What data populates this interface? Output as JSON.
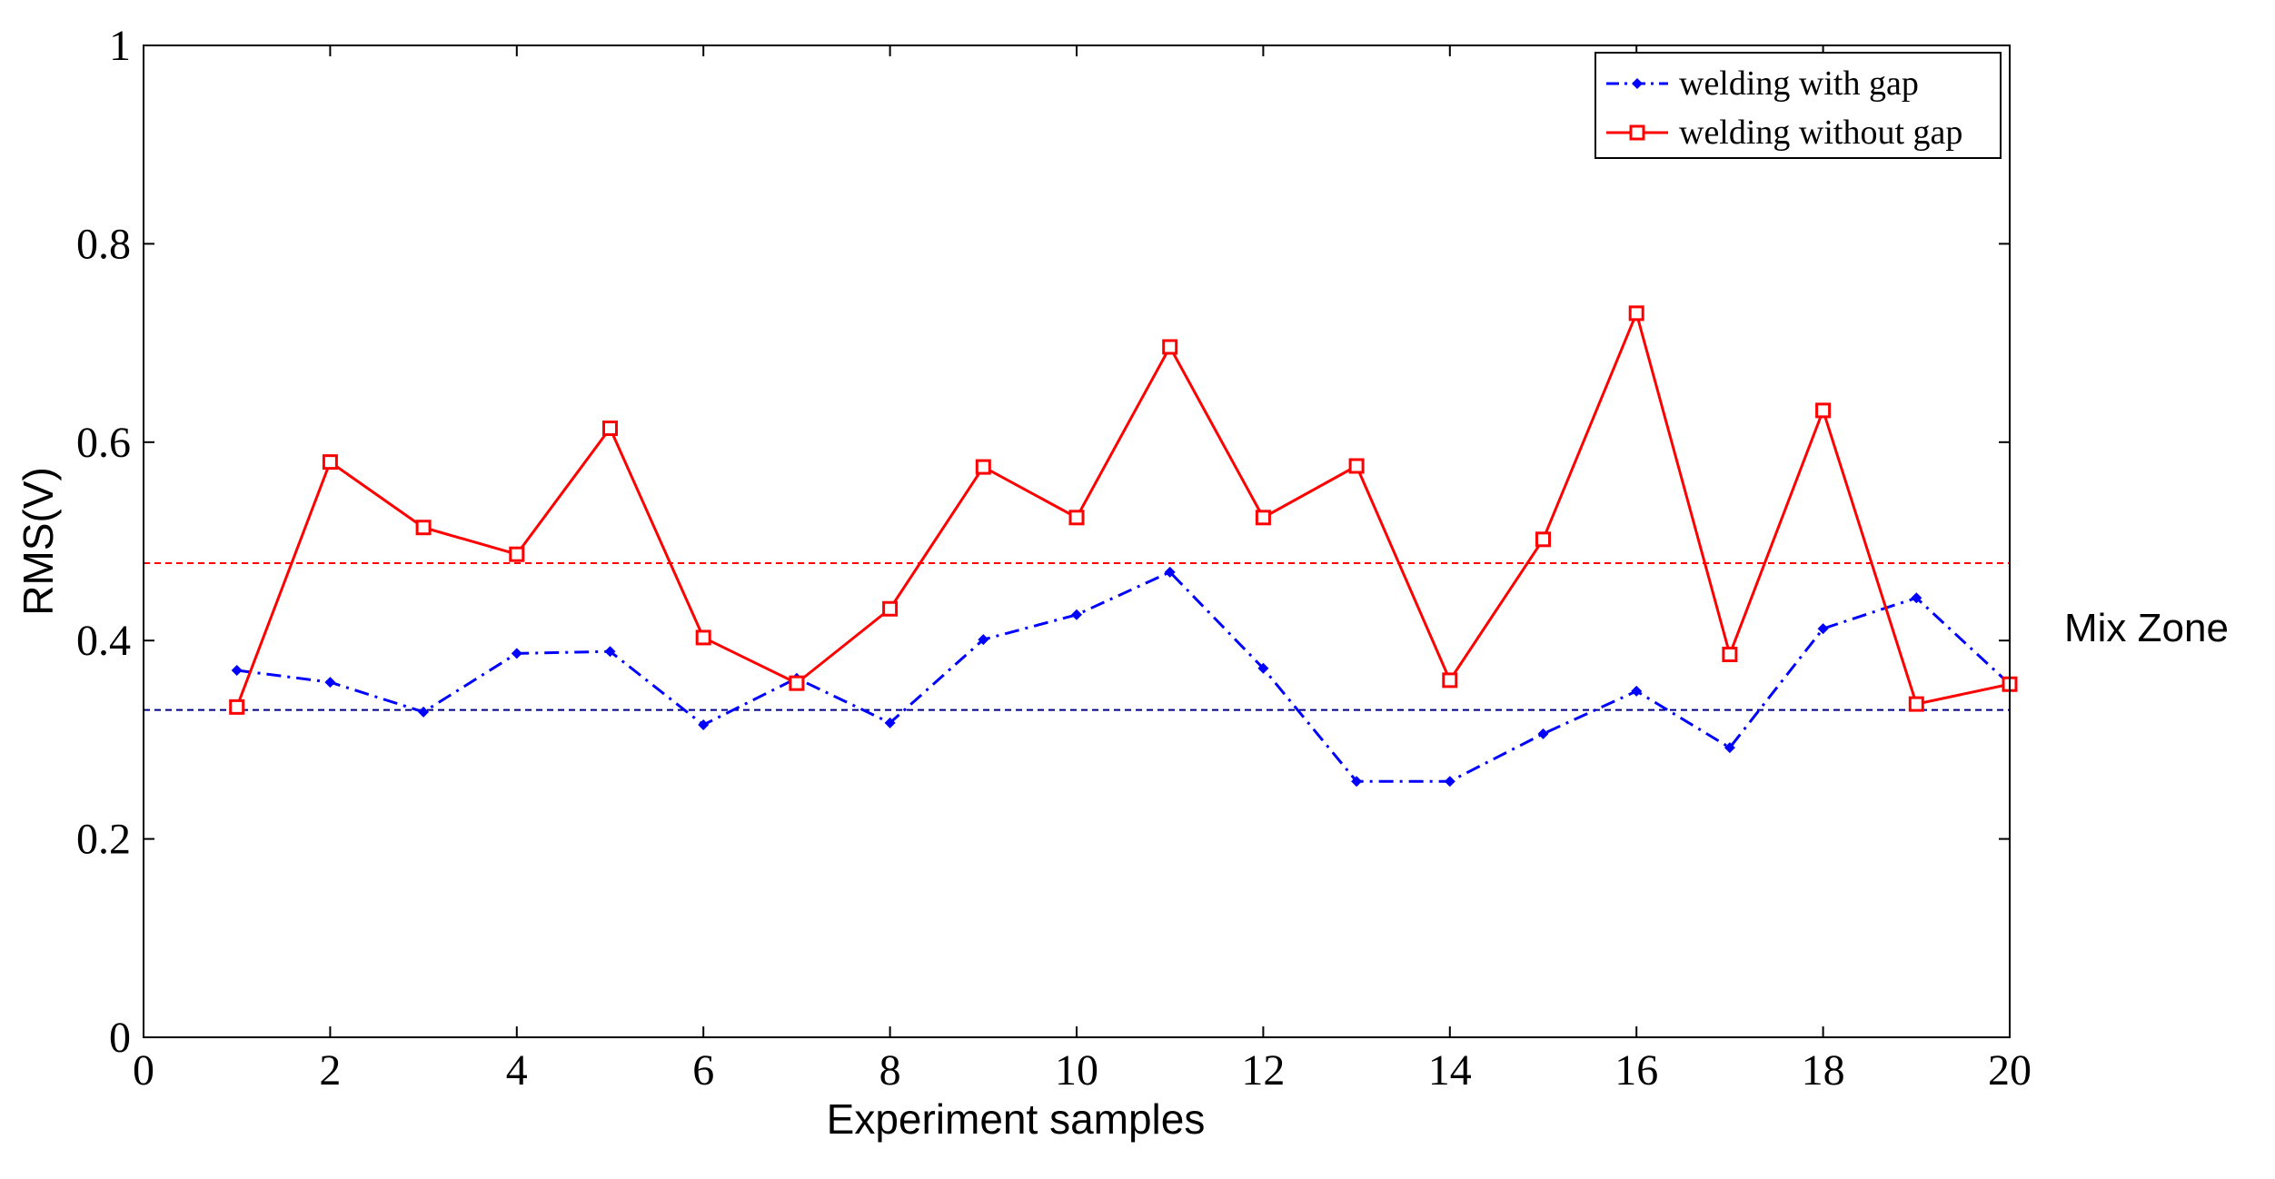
{
  "chart_data": {
    "type": "line",
    "title": "",
    "xlabel": "Experiment  samples",
    "ylabel": "RMS(V)",
    "xlim": [
      0,
      20
    ],
    "ylim": [
      0,
      1
    ],
    "xticks": [
      0,
      2,
      4,
      6,
      8,
      10,
      12,
      14,
      16,
      18,
      20
    ],
    "yticks": [
      0,
      0.2,
      0.4,
      0.6,
      0.8,
      1
    ],
    "ytick_labels": [
      "0",
      "0.2",
      "0.4",
      "0.6",
      "0.8",
      "1"
    ],
    "grid": false,
    "legend_position": "top-right",
    "x": [
      1,
      2,
      3,
      4,
      5,
      6,
      7,
      8,
      9,
      10,
      11,
      12,
      13,
      14,
      15,
      16,
      17,
      18,
      19,
      20
    ],
    "series": [
      {
        "name": "welding with gap",
        "color": "#0000ff",
        "line_style": "dash-dot",
        "marker": "diamond",
        "values": [
          0.37,
          0.358,
          0.328,
          0.387,
          0.389,
          0.315,
          0.362,
          0.317,
          0.401,
          0.426,
          0.469,
          0.372,
          0.258,
          0.258,
          0.306,
          0.349,
          0.292,
          0.412,
          0.443,
          0.356
        ]
      },
      {
        "name": "welding without gap",
        "color": "#ff0000",
        "line_style": "solid",
        "marker": "square",
        "values": [
          0.333,
          0.58,
          0.514,
          0.487,
          0.614,
          0.403,
          0.357,
          0.432,
          0.575,
          0.524,
          0.696,
          0.524,
          0.576,
          0.36,
          0.502,
          0.73,
          0.386,
          0.632,
          0.336,
          0.356
        ]
      }
    ],
    "reference_lines": [
      {
        "name": "red-mean",
        "y": 0.478,
        "color": "#ff0000",
        "style": "dashed"
      },
      {
        "name": "blue-mean",
        "y": 0.33,
        "color": "#000080",
        "style": "dashed"
      }
    ],
    "annotation": "Mix Zone"
  }
}
